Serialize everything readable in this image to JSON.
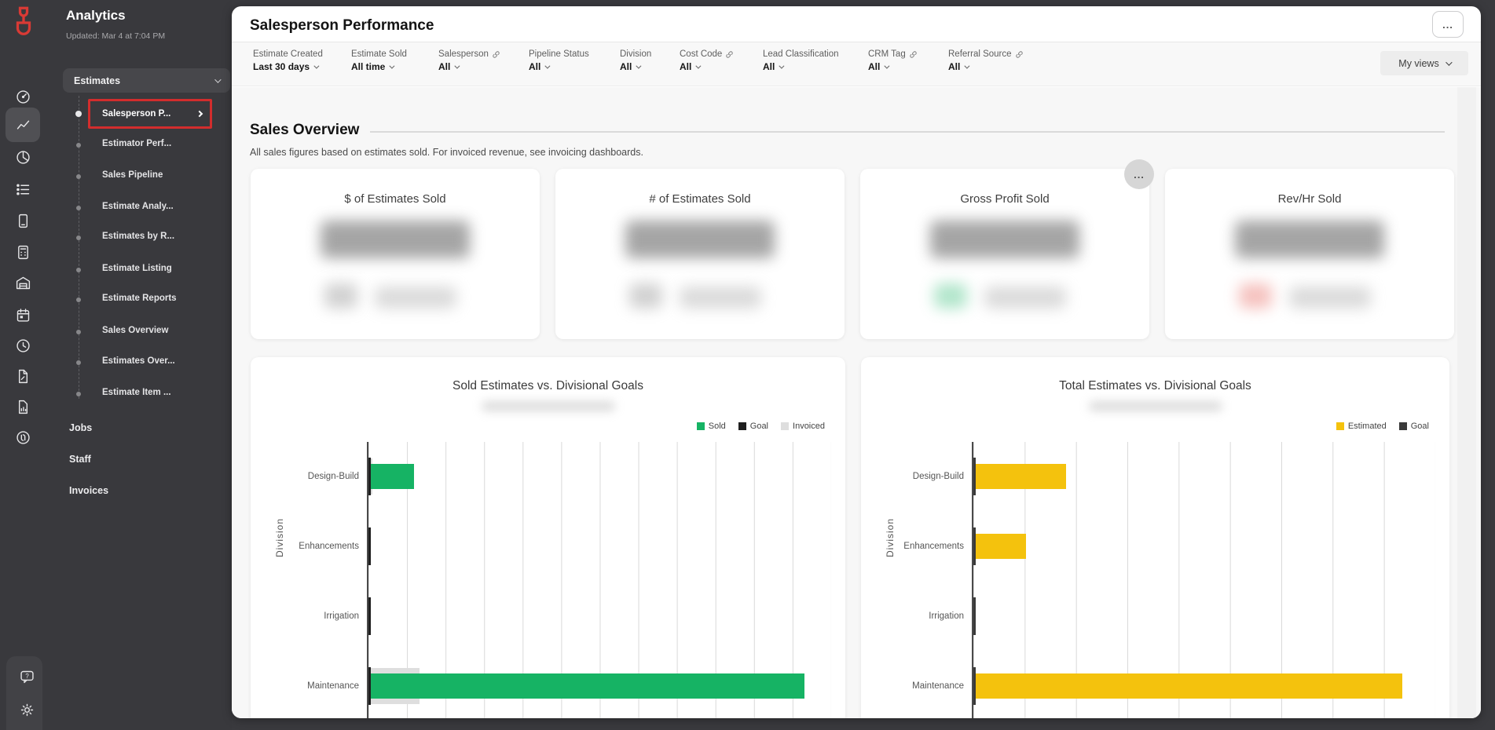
{
  "sidebar": {
    "title": "Analytics",
    "updated": "Updated: Mar 4 at 7:04 PM",
    "estimates_group": "Estimates",
    "estimate_items": [
      {
        "label": "Salesperson P...",
        "selected": true
      },
      {
        "label": "Estimator Perf..."
      },
      {
        "label": "Sales Pipeline"
      },
      {
        "label": "Estimate Analy..."
      },
      {
        "label": "Estimates by R..."
      },
      {
        "label": "Estimate Listing"
      },
      {
        "label": "Estimate Reports"
      },
      {
        "label": "Sales Overview"
      },
      {
        "label": "Estimates Over..."
      },
      {
        "label": "Estimate Item ..."
      }
    ],
    "links": [
      {
        "label": "Jobs"
      },
      {
        "label": "Staff"
      },
      {
        "label": "Invoices"
      }
    ],
    "logo_color": "#d93a35",
    "highlight_color": "#d22d2d"
  },
  "header": {
    "title": "Salesperson Performance",
    "more_label": "...",
    "my_views_label": "My views"
  },
  "filters": [
    {
      "label": "Estimate Created",
      "value": "Last 30 days",
      "linked": false
    },
    {
      "label": "Estimate Sold",
      "value": "All time",
      "linked": false
    },
    {
      "label": "Salesperson",
      "value": "All",
      "linked": true
    },
    {
      "label": "Pipeline Status",
      "value": "All",
      "linked": false
    },
    {
      "label": "Division",
      "value": "All",
      "linked": false
    },
    {
      "label": "Cost Code",
      "value": "All",
      "linked": true
    },
    {
      "label": "Lead Classification",
      "value": "All",
      "linked": false
    },
    {
      "label": "CRM Tag",
      "value": "All",
      "linked": true
    },
    {
      "label": "Referral Source",
      "value": "All",
      "linked": true
    }
  ],
  "section": {
    "title": "Sales Overview",
    "subtitle": "All sales figures based on estimates sold. For invoiced revenue, see invoicing dashboards.",
    "card_more_label": "..."
  },
  "kpi_cards": [
    {
      "title": "$ of Estimates Sold",
      "value_redacted": true
    },
    {
      "title": "# of Estimates Sold",
      "value_redacted": true
    },
    {
      "title": "Gross Profit Sold",
      "value_redacted": true,
      "badge_color": "#9edfbe"
    },
    {
      "title": "Rev/Hr Sold",
      "value_redacted": true,
      "badge_color": "#f3b3af"
    }
  ],
  "chart_data": [
    {
      "type": "bar",
      "orientation": "horizontal",
      "title": "Sold Estimates vs. Divisional Goals",
      "ylabel": "Division",
      "xlabel": "",
      "categories": [
        "Design-Build",
        "Enhancements",
        "Irrigation",
        "Maintenance"
      ],
      "series": [
        {
          "name": "Sold",
          "color": "#16b364",
          "values": [
            1.2,
            0.05,
            0,
            11.5
          ]
        },
        {
          "name": "Goal",
          "color": "#1f1f1f",
          "values": [
            0.05,
            0.05,
            0.05,
            0.05
          ]
        },
        {
          "name": "Invoiced",
          "color": "#dedede",
          "values": [
            0.1,
            0,
            0,
            1.35
          ]
        }
      ],
      "x_axis": {
        "max_units": 12.2,
        "gridline_interval_units": 1,
        "gridlines": 12,
        "tick_labels_visible": false
      },
      "legend_position": "top-right",
      "grid": true
    },
    {
      "type": "bar",
      "orientation": "horizontal",
      "title": "Total Estimates vs. Divisional Goals",
      "ylabel": "Division",
      "xlabel": "",
      "categories": [
        "Design-Build",
        "Enhancements",
        "Irrigation",
        "Maintenance"
      ],
      "series": [
        {
          "name": "Estimated",
          "color": "#f4c20d",
          "values": [
            1.85,
            1.05,
            0,
            8.55
          ]
        },
        {
          "name": "Goal",
          "color": "#3a3a3a",
          "values": [
            0.05,
            0.05,
            0.05,
            0.05
          ]
        }
      ],
      "x_axis": {
        "max_units": 9.2,
        "gridline_interval_units": 1,
        "gridlines": 9,
        "tick_labels_visible": false
      },
      "legend_position": "top-right",
      "grid": true
    }
  ]
}
